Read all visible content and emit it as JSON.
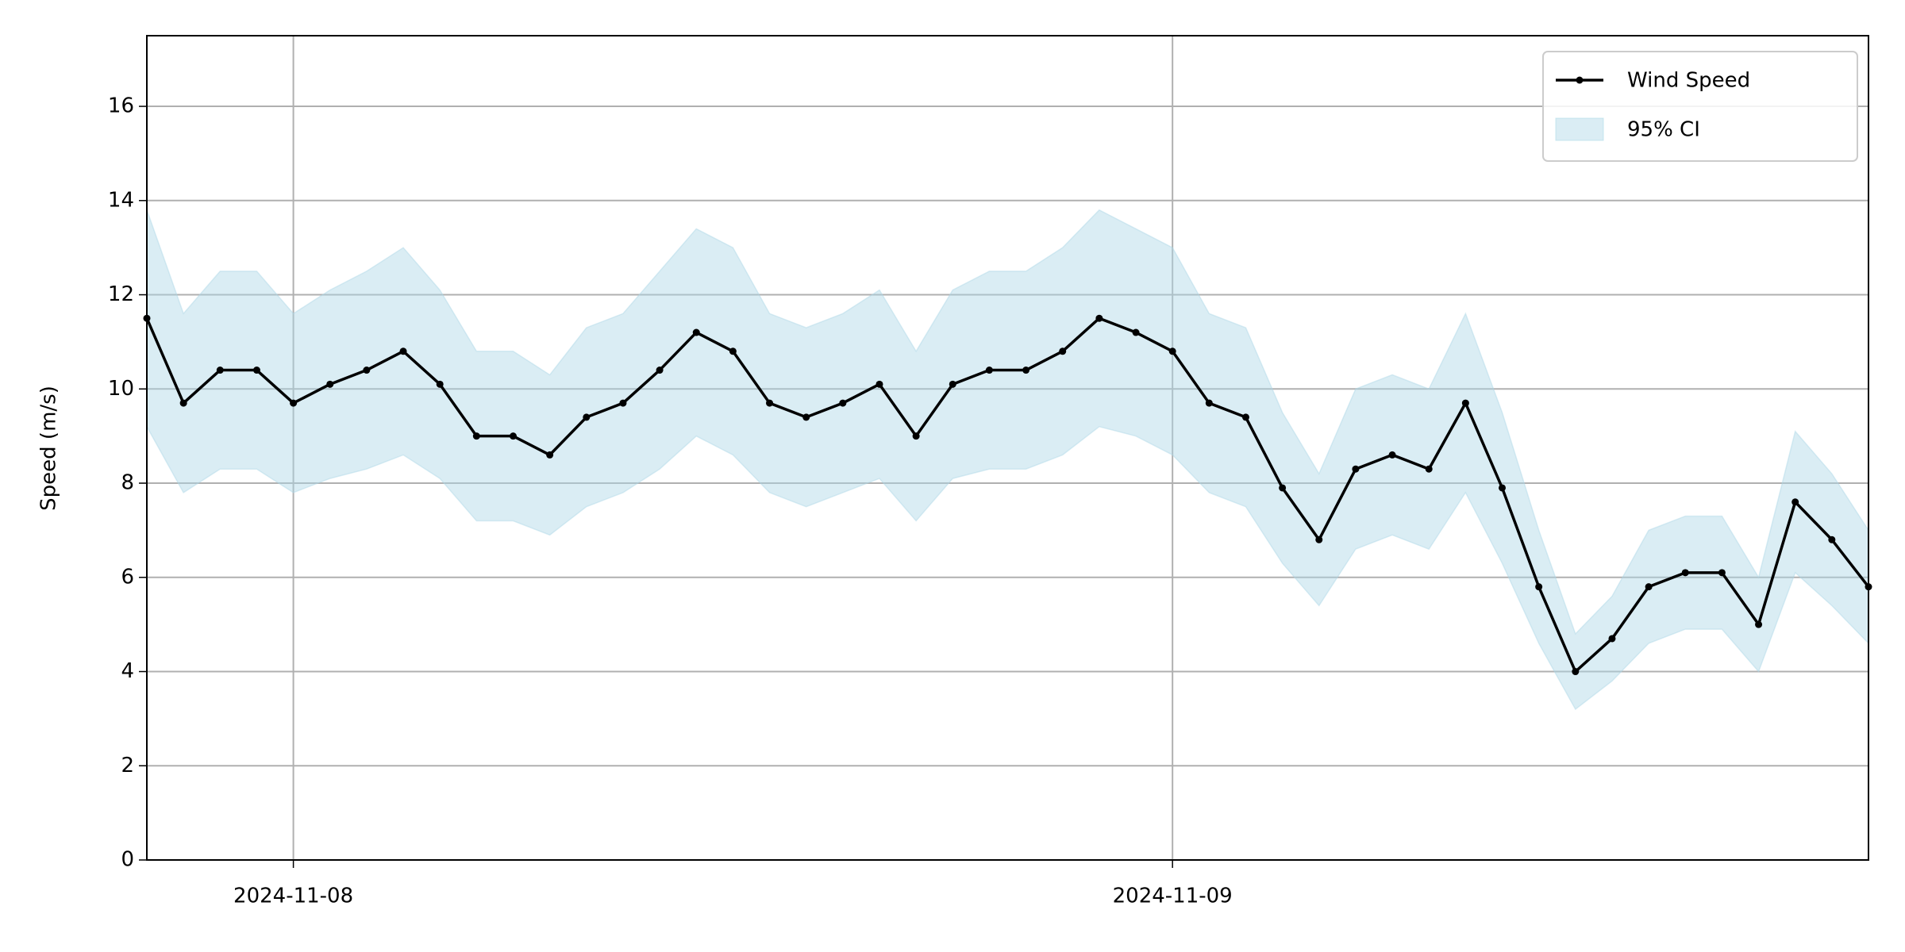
{
  "chart_data": {
    "type": "line",
    "y_label": "Speed (m/s)",
    "x": [
      "2024-11-07T20:00",
      "2024-11-07T21:00",
      "2024-11-07T22:00",
      "2024-11-07T23:00",
      "2024-11-08T00:00",
      "2024-11-08T01:00",
      "2024-11-08T02:00",
      "2024-11-08T03:00",
      "2024-11-08T04:00",
      "2024-11-08T05:00",
      "2024-11-08T06:00",
      "2024-11-08T07:00",
      "2024-11-08T08:00",
      "2024-11-08T09:00",
      "2024-11-08T10:00",
      "2024-11-08T11:00",
      "2024-11-08T12:00",
      "2024-11-08T13:00",
      "2024-11-08T14:00",
      "2024-11-08T15:00",
      "2024-11-08T16:00",
      "2024-11-08T17:00",
      "2024-11-08T18:00",
      "2024-11-08T19:00",
      "2024-11-08T20:00",
      "2024-11-08T21:00",
      "2024-11-08T22:00",
      "2024-11-08T23:00",
      "2024-11-09T00:00",
      "2024-11-09T01:00",
      "2024-11-09T02:00",
      "2024-11-09T03:00",
      "2024-11-09T04:00",
      "2024-11-09T05:00",
      "2024-11-09T06:00",
      "2024-11-09T07:00",
      "2024-11-09T08:00",
      "2024-11-09T09:00",
      "2024-11-09T10:00",
      "2024-11-09T11:00",
      "2024-11-09T12:00",
      "2024-11-09T13:00",
      "2024-11-09T14:00",
      "2024-11-09T15:00",
      "2024-11-09T16:00",
      "2024-11-09T17:00",
      "2024-11-09T18:00",
      "2024-11-09T19:00"
    ],
    "series": [
      {
        "name": "Wind Speed",
        "color": "#000000",
        "values": [
          11.5,
          9.7,
          10.4,
          10.4,
          9.7,
          10.1,
          10.4,
          10.8,
          10.1,
          9.0,
          9.0,
          8.6,
          9.4,
          9.7,
          10.4,
          11.2,
          10.8,
          9.7,
          9.4,
          9.7,
          10.1,
          9.0,
          10.1,
          10.4,
          10.4,
          10.8,
          11.5,
          11.2,
          10.8,
          9.7,
          9.4,
          7.9,
          6.8,
          8.3,
          8.6,
          8.3,
          9.7,
          7.9,
          5.8,
          4.0,
          4.7,
          5.8,
          6.1,
          6.1,
          5.0,
          7.6,
          6.8,
          5.8
        ]
      }
    ],
    "ci": {
      "name": "95% CI",
      "color": "#add8e6",
      "upper": [
        13.8,
        11.6,
        12.5,
        12.5,
        11.6,
        12.1,
        12.5,
        13.0,
        12.1,
        10.8,
        10.8,
        10.3,
        11.3,
        11.6,
        12.5,
        13.4,
        13.0,
        11.6,
        11.3,
        11.6,
        12.1,
        10.8,
        12.1,
        12.5,
        12.5,
        13.0,
        13.8,
        13.4,
        13.0,
        11.6,
        11.3,
        9.5,
        8.2,
        10.0,
        10.3,
        10.0,
        11.6,
        9.5,
        7.0,
        4.8,
        5.6,
        7.0,
        7.3,
        7.3,
        6.0,
        9.1,
        8.2,
        7.0
      ],
      "lower": [
        9.2,
        7.8,
        8.3,
        8.3,
        7.8,
        8.1,
        8.3,
        8.6,
        8.1,
        7.2,
        7.2,
        6.9,
        7.5,
        7.8,
        8.3,
        9.0,
        8.6,
        7.8,
        7.5,
        7.8,
        8.1,
        7.2,
        8.1,
        8.3,
        8.3,
        8.6,
        9.2,
        9.0,
        8.6,
        7.8,
        7.5,
        6.3,
        5.4,
        6.6,
        6.9,
        6.6,
        7.8,
        6.3,
        4.6,
        3.2,
        3.8,
        4.6,
        4.9,
        4.9,
        4.0,
        6.1,
        5.4,
        4.6
      ]
    },
    "xlim": [
      "2024-11-07T20:00",
      "2024-11-09T19:00"
    ],
    "xticks": [
      "2024-11-08",
      "2024-11-09"
    ],
    "ylim": [
      0,
      17.5
    ],
    "yticks": [
      0,
      2,
      4,
      6,
      8,
      10,
      12,
      14,
      16
    ],
    "grid": true,
    "legend": "upper right"
  }
}
